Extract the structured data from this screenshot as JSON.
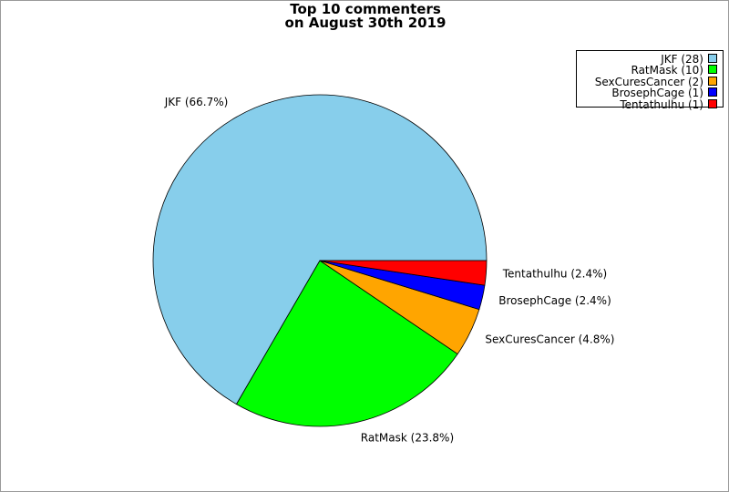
{
  "chart_data": {
    "type": "pie",
    "title": "Top 10 commenters",
    "subtitle": "on August 30th 2019",
    "slices": [
      {
        "name": "JKF",
        "count": 28,
        "percent": 66.7,
        "color": "#87ceeb",
        "legend": "JKF (28)",
        "label": "JKF (66.7%)"
      },
      {
        "name": "RatMask",
        "count": 10,
        "percent": 23.8,
        "color": "#00ff00",
        "legend": "RatMask (10)",
        "label": "RatMask (23.8%)"
      },
      {
        "name": "SexCuresCancer",
        "count": 2,
        "percent": 4.8,
        "color": "#ffa500",
        "legend": "SexCuresCancer (2)",
        "label": "SexCuresCancer (4.8%)"
      },
      {
        "name": "BrosephCage",
        "count": 1,
        "percent": 2.4,
        "color": "#0000ff",
        "legend": "BrosephCage (1)",
        "label": "BrosephCage (2.4%)"
      },
      {
        "name": "Tentathulhu",
        "count": 1,
        "percent": 2.4,
        "color": "#ff0000",
        "legend": "Tentathulhu (1)",
        "label": "Tentathulhu (2.4%)"
      }
    ],
    "start_angle_deg": 0,
    "direction": "counterclockwise",
    "legend_position": "top-right"
  }
}
